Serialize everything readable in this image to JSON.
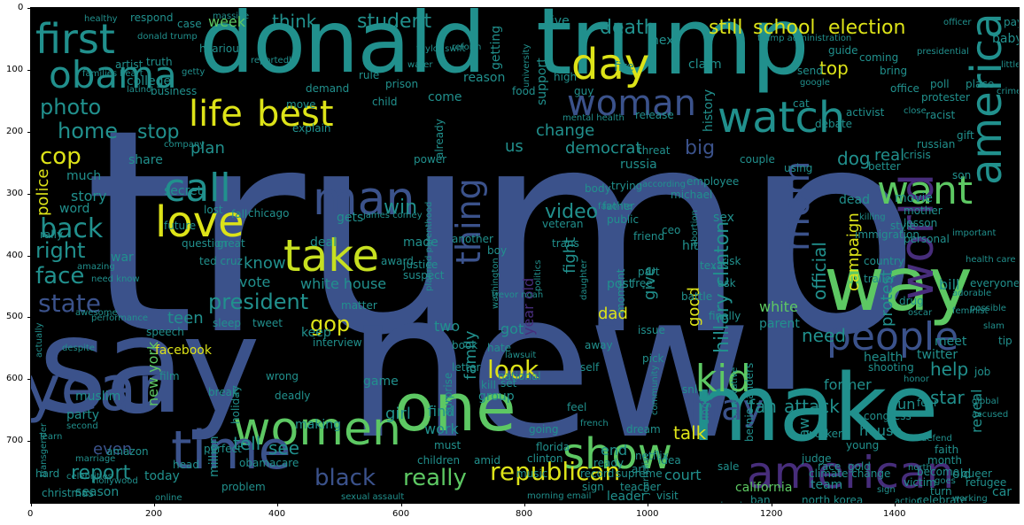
{
  "palette": {
    "background": "#000000",
    "teal": "#21908d",
    "blue": "#3b528b",
    "purple": "#472d7b",
    "green": "#5dc863",
    "yellow": "#dde318",
    "darkteal": "#2c728e"
  },
  "axes": {
    "x_ticks": [
      "0",
      "200",
      "400",
      "600",
      "800",
      "1000",
      "1200",
      "1400"
    ],
    "y_ticks": [
      "0",
      "100",
      "200",
      "300",
      "400",
      "500",
      "600",
      "700"
    ]
  },
  "words": {
    "trump_big": "trump",
    "new": "new",
    "say": "say",
    "donald": "donald",
    "trump_top": "trump",
    "make": "make",
    "way": "way",
    "one": "one",
    "women": "women",
    "year": "year",
    "time": "time",
    "american": "american",
    "show": "show",
    "america": "america",
    "obama": "obama",
    "first": "first",
    "day": "day",
    "woman": "woman",
    "watch": "watch",
    "life": "life",
    "best": "best",
    "love": "love",
    "take": "take",
    "man": "man",
    "call": "call",
    "thing": "thing",
    "people": "people",
    "want": "want",
    "kid": "kid",
    "may": "may",
    "mom": "mom",
    "world": "world",
    "republican": "republican",
    "black": "black",
    "really": "really",
    "look": "look",
    "gop": "gop",
    "back": "back",
    "right": "right",
    "face": "face",
    "state": "state",
    "president": "president",
    "report": "report",
    "photo": "photo",
    "home": "home",
    "stop": "stop",
    "cop": "cop",
    "police": "police",
    "win": "win",
    "death": "death",
    "still": "still",
    "school": "school",
    "election": "election",
    "student": "student",
    "think": "think",
    "week": "week",
    "dog": "dog",
    "top": "top",
    "big": "big",
    "real": "real",
    "change": "change",
    "democrat": "democrat",
    "hillary_clinton": "hillary clinton",
    "video": "video",
    "year_old": "year old",
    "fight": "fight",
    "talk": "talk",
    "star": "star",
    "fan": "fan",
    "attack": "attack",
    "need": "need",
    "white": "white",
    "help": "help",
    "official": "official",
    "campaign": "campaign",
    "protest": "protest",
    "family": "family",
    "give": "give",
    "good": "good",
    "dad": "dad",
    "see": "see",
    "tell": "tell",
    "know": "know",
    "vote": "vote",
    "white_house": "white house",
    "teen": "teen",
    "new_york": "new york",
    "facebook": "facebook",
    "plan": "plan",
    "story": "story",
    "two": "two",
    "us": "us",
    "end": "end",
    "find": "find",
    "work": "work",
    "girl": "girl",
    "got": "got",
    "house": "house",
    "gun": "gun",
    "former": "former",
    "meet": "meet",
    "health": "health",
    "twitter": "twitter",
    "law": "law",
    "reveal": "reveal",
    "bill": "bill",
    "court": "court",
    "california": "california",
    "even": "even",
    "making": "making",
    "million": "million",
    "muslim": "muslim",
    "party": "party",
    "keep": "keep",
    "deal": "deal",
    "made": "made",
    "gets": "gets",
    "history": "history",
    "baby": "baby",
    "live": "live",
    "support": "support",
    "next": "next",
    "claim": "claim",
    "fire": "fire",
    "reason": "reason",
    "come": "come",
    "getting": "getting",
    "share": "share",
    "college": "college",
    "much": "much",
    "hit": "hit",
    "sex": "sex",
    "movie": "movie",
    "dead": "dead",
    "russia": "russia",
    "season": "season",
    "today": "today",
    "christmas": "christmas",
    "team": "team",
    "leader": "leader",
    "war": "war",
    "secret": "secret",
    "future": "future",
    "word": "word",
    "problem": "problem",
    "group": "group",
    "game": "game",
    "parent": "parent",
    "moment": "moment",
    "post": "post",
    "free": "free",
    "texas": "texas",
    "style": "style",
    "better": "better",
    "son": "son",
    "gift": "gift",
    "racist": "racist",
    "place": "place",
    "pay": "pay",
    "old": "old",
    "car": "car",
    "job": "job",
    "tip": "tip",
    "ask": "ask",
    "risk": "risk",
    "case": "case",
    "food": "food",
    "child": "child",
    "friend": "friend",
    "part": "part",
    "hate": "hate",
    "book": "book",
    "matter": "matter",
    "congress": "congress",
    "already": "already",
    "power": "power",
    "justice": "justice",
    "another": "another",
    "artist": "artist",
    "heart": "heart",
    "latino": "latino",
    "rule": "rule",
    "question": "question",
    "speech": "speech",
    "actually": "actually",
    "holiday": "holiday",
    "film": "film",
    "must": "must",
    "going": "going",
    "netflix": "netflix",
    "trans": "trans",
    "guy": "guy",
    "prison": "prison",
    "water": "water",
    "bring": "bring",
    "office": "office",
    "crisis": "crisis",
    "russian": "russian",
    "drug": "drug",
    "country": "country",
    "trailer": "trailer",
    "everyone": "everyone",
    "adorable": "adorable",
    "possible": "possible",
    "shooting": "shooting",
    "single": "single",
    "national": "national",
    "letter": "letter",
    "surprise": "surprise",
    "children": "children",
    "amid": "amid",
    "sale": "sale",
    "race": "race",
    "gold": "gold",
    "judge": "judge",
    "climate_change": "climate change",
    "north_korea": "north korea",
    "turn": "turn",
    "without": "without",
    "celebrate": "celebrate",
    "action": "action",
    "visit": "visit",
    "supreme": "supreme",
    "music": "music",
    "sign": "sign",
    "ban": "ban",
    "teacher": "teacher",
    "amazon": "amazon",
    "perfect": "perfect",
    "head": "head",
    "hard": "hard",
    "online": "online",
    "fall": "fall",
    "lost": "lost",
    "chicago": "chicago",
    "great": "great",
    "ted_cruz": "ted cruz",
    "award": "award",
    "suspect": "suspect",
    "mother": "mother",
    "lesson": "lesson",
    "personal": "personal",
    "internet": "internet",
    "important": "important",
    "journalist": "journalist",
    "bernie_sanders": "bernie sanders",
    "conservative": "conservative",
    "obamacare": "obamacare",
    "deadly": "deadly",
    "wrong": "wrong",
    "interview": "interview",
    "explain": "explain",
    "move": "move",
    "demand": "demand",
    "business": "business",
    "healthy": "healthy",
    "respond": "respond",
    "hilarious": "hilarious",
    "truth": "truth",
    "guide": "guide",
    "coming": "coming",
    "send": "send",
    "protester": "protester",
    "poll": "poll",
    "activist": "activist",
    "debate": "debate",
    "release": "release",
    "threat": "threat",
    "couple": "couple",
    "using": "using",
    "father": "father",
    "public": "public",
    "michael": "michael",
    "pick": "pick",
    "self": "self",
    "away": "away",
    "finally": "finally",
    "issue": "issue",
    "battle": "battle",
    "favorite": "favorite",
    "veteran": "veteran",
    "immigration": "immigration",
    "refugee": "refugee",
    "victim": "victim",
    "become": "become",
    "month": "month",
    "worker": "worker",
    "young": "young",
    "accused": "accused",
    "global": "global",
    "ceo": "ceo",
    "boy": "boy",
    "set": "set",
    "kill": "kill",
    "dream": "dream",
    "body": "body",
    "fear": "fear",
    "trying": "trying",
    "employee": "employee",
    "rally": "rally",
    "marriage": "marriage",
    "transgender": "transgender",
    "sleep": "sleep",
    "tweet": "tweet",
    "break": "break",
    "florida": "florida",
    "clinton": "clinton",
    "french": "french",
    "feel": "feel",
    "ready": "ready",
    "idea": "idea",
    "record": "record",
    "weekend": "weekend",
    "morning_email": "morning email",
    "sexual_assault": "sexual assault",
    "north": "north",
    "goes": "goes",
    "working": "working",
    "queer": "queer",
    "faith": "faith",
    "defend": "defend",
    "university": "university",
    "high": "high",
    "reportedly": "reportedly",
    "massive": "massive",
    "officer": "officer",
    "trump_administration": "trump administration",
    "presidential": "presidential",
    "close": "close",
    "according": "according",
    "killing": "killing",
    "planned_parenthood": "planned parenthood",
    "awesome": "awesome",
    "amazing": "amazing",
    "need_know": "need know",
    "performance": "performance",
    "despite": "despite",
    "second": "second",
    "learn": "learn",
    "celebrities": "celebrities",
    "hollywood": "hollywood",
    "company": "company",
    "families": "families",
    "trevor_noah": "trevor noah",
    "washington": "washington",
    "politics": "politics",
    "daughter": "daughter",
    "james_comey": "james comey",
    "lawsuit": "lawsuit",
    "abortion": "abortion",
    "community": "community",
    "snl": "snl",
    "oscar": "oscar",
    "honor": "honor",
    "feminist": "feminist",
    "slam": "slam",
    "art": "art",
    "health_care": "health care",
    "crime": "crime",
    "little": "little",
    "mental_health": "mental health",
    "reform": "reform",
    "taylor_swift": "taylor swift",
    "google": "google",
    "getty": "getty",
    "donald_trump": "donald trump",
    "sign2": "sign",
    "cat": "cat"
  }
}
